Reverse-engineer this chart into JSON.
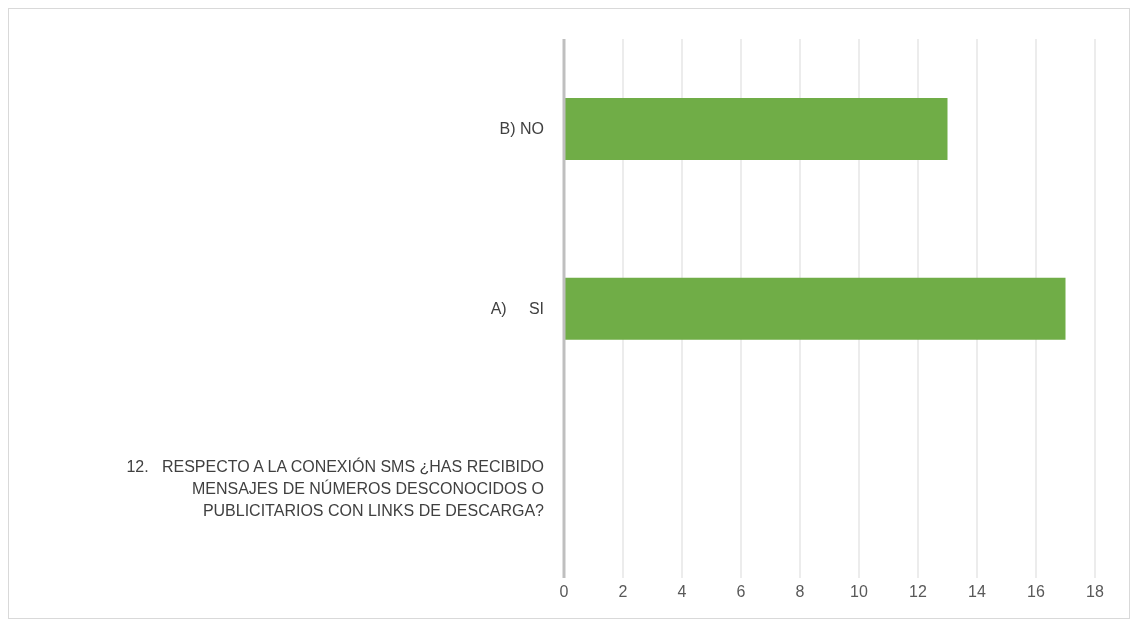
{
  "chart_data": {
    "type": "bar",
    "orientation": "horizontal",
    "categories": [
      "B) NO",
      "A)     SI",
      "12.   RESPECTO A LA CONEXIÓN SMS ¿HAS RECIBIDO MENSAJES DE NÚMEROS DESCONOCIDOS O PUBLICITARIOS CON LINKS DE DESCARGA?"
    ],
    "values": [
      13,
      17,
      null
    ],
    "color": "#70ad47",
    "xlim": [
      0,
      18
    ],
    "xticks": [
      0,
      2,
      4,
      6,
      8,
      10,
      12,
      14,
      16,
      18
    ],
    "grid": "x"
  }
}
